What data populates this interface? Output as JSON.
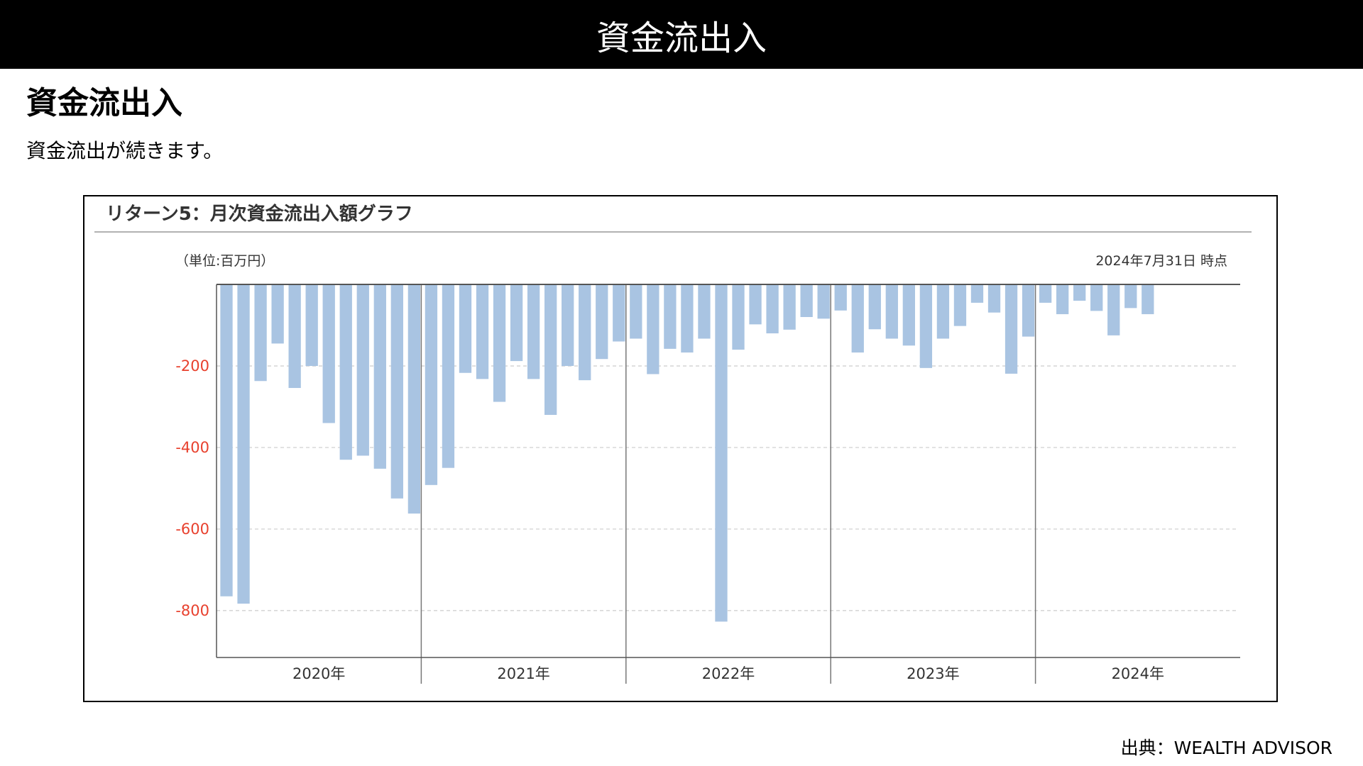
{
  "header": {
    "title": "資金流出入"
  },
  "section": {
    "heading": "資金流出入",
    "subtext": "資金流出が続きます。"
  },
  "chart_box": {
    "title": "リターン5：月次資金流出入額グラフ",
    "unit_label": "（単位:百万円）",
    "asof_label": "2024年7月31日 時点"
  },
  "colors": {
    "bar": "#a9c4e2",
    "tick_label": "#e8412e",
    "header_bg": "#000000",
    "grid": "#cccccc"
  },
  "chart_data": {
    "type": "bar",
    "title": "リターン5：月次資金流出入額グラフ",
    "xlabel": "",
    "ylabel": "（単位:百万円）",
    "ylim": [
      -915,
      0
    ],
    "yticks": [
      -200,
      -400,
      -600,
      -800
    ],
    "ytick_labels": [
      "-200",
      "-400",
      "-600",
      "-800"
    ],
    "grid": "horizontal dashed",
    "groups": [
      {
        "label": "2020年",
        "values": [
          -765,
          -783,
          -237,
          -145,
          -254,
          -200,
          -340,
          -430,
          -420,
          -452,
          -525,
          -562
        ]
      },
      {
        "label": "2021年",
        "values": [
          -492,
          -450,
          -217,
          -232,
          -288,
          -188,
          -232,
          -320,
          -200,
          -235,
          -183,
          -140
        ]
      },
      {
        "label": "2022年",
        "values": [
          -133,
          -220,
          -158,
          -167,
          -133,
          -827,
          -160,
          -98,
          -120,
          -111,
          -80,
          -84
        ]
      },
      {
        "label": "2023年",
        "values": [
          -64,
          -167,
          -110,
          -133,
          -150,
          -205,
          -133,
          -102,
          -45,
          -69,
          -219,
          -128
        ]
      },
      {
        "label": "2024年",
        "values": [
          -45,
          -73,
          -40,
          -65,
          -125,
          -58,
          -73
        ]
      }
    ]
  },
  "footer": {
    "source": "出典：WEALTH ADVISOR"
  }
}
